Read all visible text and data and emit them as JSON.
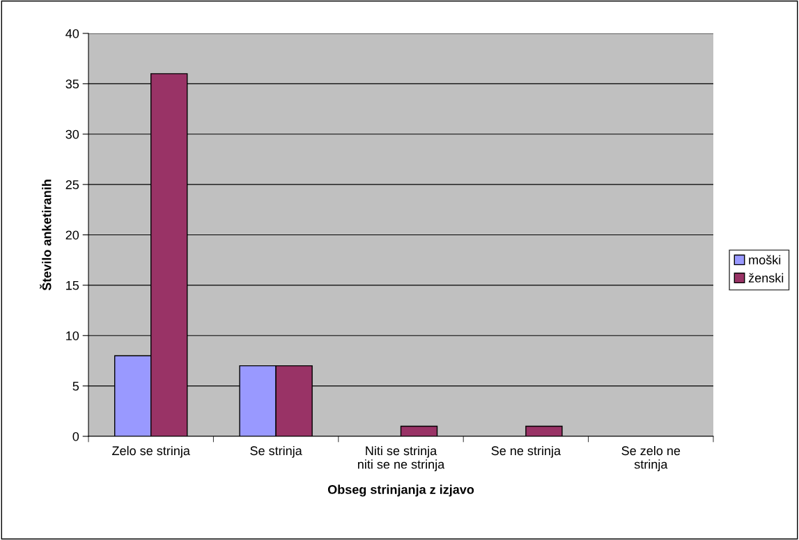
{
  "chart_data": {
    "type": "bar",
    "xlabel": "Obseg strinjanja z izjavo",
    "ylabel": "Število anketiranih",
    "categories": [
      "Zelo se strinja",
      "Se strinja",
      "Niti se strinja\nniti se ne strinja",
      "Se ne strinja",
      "Se zelo ne\nstrinja"
    ],
    "series": [
      {
        "name": "moški",
        "color": "#9999ff",
        "values": [
          8,
          7,
          0,
          0,
          0
        ]
      },
      {
        "name": "ženski",
        "color": "#993366",
        "values": [
          36,
          7,
          1,
          1,
          0
        ]
      }
    ],
    "ylim": [
      0,
      40
    ],
    "yticks": [
      0,
      5,
      10,
      15,
      20,
      25,
      30,
      35,
      40
    ],
    "grid": "y",
    "legend": "right"
  }
}
